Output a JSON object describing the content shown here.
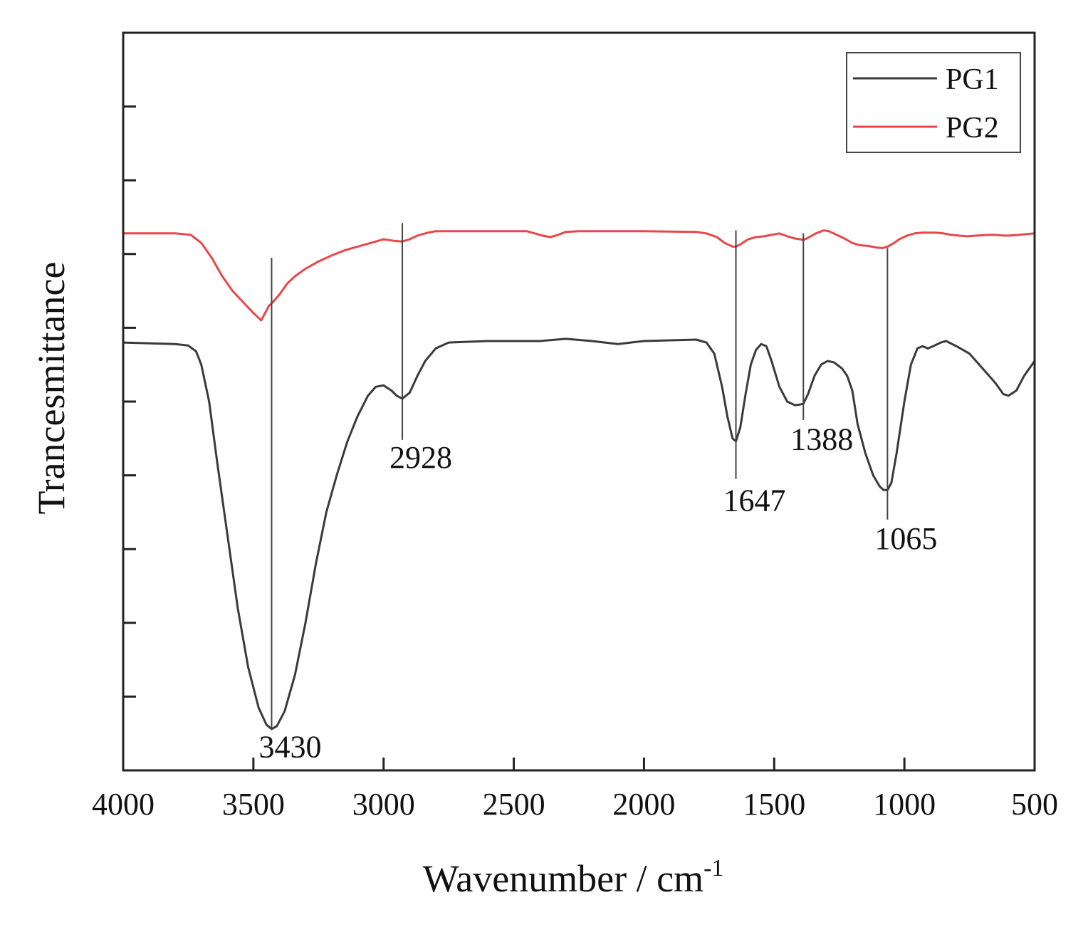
{
  "chart_data": {
    "type": "line",
    "xlabel": "Wavenumber / cm",
    "xlabel_sup": "-1",
    "ylabel": "Trancesmittance",
    "xlim": [
      4000,
      500
    ],
    "x_reversed": true,
    "x_ticks": [
      4000,
      3500,
      3000,
      2500,
      2000,
      1500,
      1000,
      500
    ],
    "ylim": [
      0,
      100
    ],
    "y_ticks": [
      0,
      10,
      20,
      30,
      40,
      50,
      60,
      70,
      80,
      90
    ],
    "y_tick_labels_shown": false,
    "legend_position": "top-right",
    "series": [
      {
        "name": "PG1",
        "color": "#3a3a3a",
        "points": [
          [
            4000,
            58.0
          ],
          [
            3800,
            57.8
          ],
          [
            3750,
            57.6
          ],
          [
            3720,
            56.8
          ],
          [
            3700,
            55.0
          ],
          [
            3670,
            50.0
          ],
          [
            3640,
            42.0
          ],
          [
            3600,
            32.0
          ],
          [
            3560,
            22.0
          ],
          [
            3520,
            14.0
          ],
          [
            3480,
            8.5
          ],
          [
            3450,
            6.2
          ],
          [
            3430,
            5.6
          ],
          [
            3410,
            6.0
          ],
          [
            3380,
            8.0
          ],
          [
            3340,
            13.0
          ],
          [
            3300,
            20.0
          ],
          [
            3260,
            28.0
          ],
          [
            3220,
            35.0
          ],
          [
            3180,
            40.0
          ],
          [
            3140,
            44.5
          ],
          [
            3100,
            48.0
          ],
          [
            3060,
            50.8
          ],
          [
            3030,
            52.0
          ],
          [
            3000,
            52.2
          ],
          [
            2970,
            51.5
          ],
          [
            2950,
            50.8
          ],
          [
            2928,
            50.4
          ],
          [
            2900,
            51.2
          ],
          [
            2870,
            53.5
          ],
          [
            2840,
            55.5
          ],
          [
            2800,
            57.2
          ],
          [
            2750,
            58.0
          ],
          [
            2600,
            58.2
          ],
          [
            2400,
            58.2
          ],
          [
            2300,
            58.5
          ],
          [
            2200,
            58.2
          ],
          [
            2100,
            57.8
          ],
          [
            2000,
            58.2
          ],
          [
            1800,
            58.4
          ],
          [
            1760,
            58.0
          ],
          [
            1730,
            56.5
          ],
          [
            1700,
            52.0
          ],
          [
            1680,
            48.0
          ],
          [
            1660,
            45.0
          ],
          [
            1647,
            44.6
          ],
          [
            1630,
            46.5
          ],
          [
            1610,
            51.0
          ],
          [
            1590,
            55.0
          ],
          [
            1570,
            57.0
          ],
          [
            1550,
            57.8
          ],
          [
            1530,
            57.5
          ],
          [
            1510,
            55.5
          ],
          [
            1480,
            52.0
          ],
          [
            1450,
            50.0
          ],
          [
            1420,
            49.5
          ],
          [
            1400,
            49.6
          ],
          [
            1388,
            49.7
          ],
          [
            1370,
            51.0
          ],
          [
            1345,
            53.5
          ],
          [
            1320,
            55.0
          ],
          [
            1295,
            55.5
          ],
          [
            1270,
            55.3
          ],
          [
            1240,
            54.5
          ],
          [
            1220,
            53.5
          ],
          [
            1200,
            51.5
          ],
          [
            1180,
            47.0
          ],
          [
            1150,
            43.0
          ],
          [
            1120,
            40.0
          ],
          [
            1095,
            38.5
          ],
          [
            1080,
            38.0
          ],
          [
            1065,
            38.0
          ],
          [
            1050,
            39.0
          ],
          [
            1030,
            43.0
          ],
          [
            1000,
            50.0
          ],
          [
            975,
            55.0
          ],
          [
            950,
            57.2
          ],
          [
            930,
            57.5
          ],
          [
            910,
            57.2
          ],
          [
            890,
            57.5
          ],
          [
            860,
            58.0
          ],
          [
            840,
            58.2
          ],
          [
            800,
            57.5
          ],
          [
            750,
            56.5
          ],
          [
            700,
            54.5
          ],
          [
            650,
            52.5
          ],
          [
            620,
            51.0
          ],
          [
            600,
            50.8
          ],
          [
            570,
            51.5
          ],
          [
            540,
            53.5
          ],
          [
            500,
            55.5
          ]
        ]
      },
      {
        "name": "PG2",
        "color": "#e8474a",
        "points": [
          [
            4000,
            72.8
          ],
          [
            3800,
            72.8
          ],
          [
            3740,
            72.6
          ],
          [
            3700,
            71.5
          ],
          [
            3660,
            69.5
          ],
          [
            3620,
            67.0
          ],
          [
            3580,
            65.0
          ],
          [
            3540,
            63.5
          ],
          [
            3500,
            62.0
          ],
          [
            3470,
            61.0
          ],
          [
            3440,
            63.0
          ],
          [
            3430,
            63.3
          ],
          [
            3400,
            64.5
          ],
          [
            3370,
            66.0
          ],
          [
            3340,
            67.0
          ],
          [
            3300,
            68.0
          ],
          [
            3250,
            69.0
          ],
          [
            3200,
            69.8
          ],
          [
            3150,
            70.5
          ],
          [
            3100,
            71.0
          ],
          [
            3050,
            71.5
          ],
          [
            3000,
            72.0
          ],
          [
            2960,
            71.8
          ],
          [
            2928,
            71.7
          ],
          [
            2900,
            72.0
          ],
          [
            2870,
            72.5
          ],
          [
            2830,
            72.9
          ],
          [
            2800,
            73.1
          ],
          [
            2700,
            73.1
          ],
          [
            2500,
            73.1
          ],
          [
            2450,
            73.1
          ],
          [
            2420,
            72.8
          ],
          [
            2390,
            72.5
          ],
          [
            2360,
            72.3
          ],
          [
            2330,
            72.6
          ],
          [
            2300,
            73.0
          ],
          [
            2250,
            73.1
          ],
          [
            2000,
            73.1
          ],
          [
            1800,
            73.0
          ],
          [
            1760,
            72.8
          ],
          [
            1720,
            72.3
          ],
          [
            1690,
            71.5
          ],
          [
            1660,
            71.0
          ],
          [
            1647,
            71.0
          ],
          [
            1630,
            71.3
          ],
          [
            1600,
            72.0
          ],
          [
            1570,
            72.3
          ],
          [
            1540,
            72.4
          ],
          [
            1510,
            72.6
          ],
          [
            1480,
            72.8
          ],
          [
            1450,
            72.4
          ],
          [
            1420,
            72.1
          ],
          [
            1400,
            72.0
          ],
          [
            1388,
            71.9
          ],
          [
            1370,
            72.2
          ],
          [
            1340,
            72.8
          ],
          [
            1310,
            73.2
          ],
          [
            1290,
            73.1
          ],
          [
            1260,
            72.6
          ],
          [
            1230,
            72.1
          ],
          [
            1200,
            71.5
          ],
          [
            1170,
            71.2
          ],
          [
            1140,
            71.1
          ],
          [
            1110,
            70.9
          ],
          [
            1085,
            70.8
          ],
          [
            1065,
            71.0
          ],
          [
            1040,
            71.5
          ],
          [
            1020,
            72.0
          ],
          [
            990,
            72.5
          ],
          [
            960,
            72.8
          ],
          [
            930,
            72.9
          ],
          [
            880,
            72.9
          ],
          [
            850,
            72.8
          ],
          [
            820,
            72.6
          ],
          [
            790,
            72.5
          ],
          [
            760,
            72.4
          ],
          [
            720,
            72.5
          ],
          [
            680,
            72.6
          ],
          [
            650,
            72.6
          ],
          [
            620,
            72.5
          ],
          [
            600,
            72.5
          ],
          [
            560,
            72.6
          ],
          [
            530,
            72.7
          ],
          [
            500,
            72.8
          ]
        ]
      }
    ],
    "annotations": [
      {
        "label": "3430",
        "x": 3430,
        "line_from": 5.6,
        "line_to": 69.5,
        "text_at": 1.8
      },
      {
        "label": "2928",
        "x": 2928,
        "line_from": 44.8,
        "line_to": 74.2,
        "text_at": 41.0
      },
      {
        "label": "1647",
        "x": 1647,
        "line_from": 39.5,
        "line_to": 73.2,
        "text_at": 35.2
      },
      {
        "label": "1388",
        "x": 1388,
        "line_from": 47.5,
        "line_to": 72.8,
        "text_at": 43.5
      },
      {
        "label": "1065",
        "x": 1065,
        "line_from": 34.0,
        "line_to": 70.8,
        "text_at": 30.0
      }
    ]
  }
}
